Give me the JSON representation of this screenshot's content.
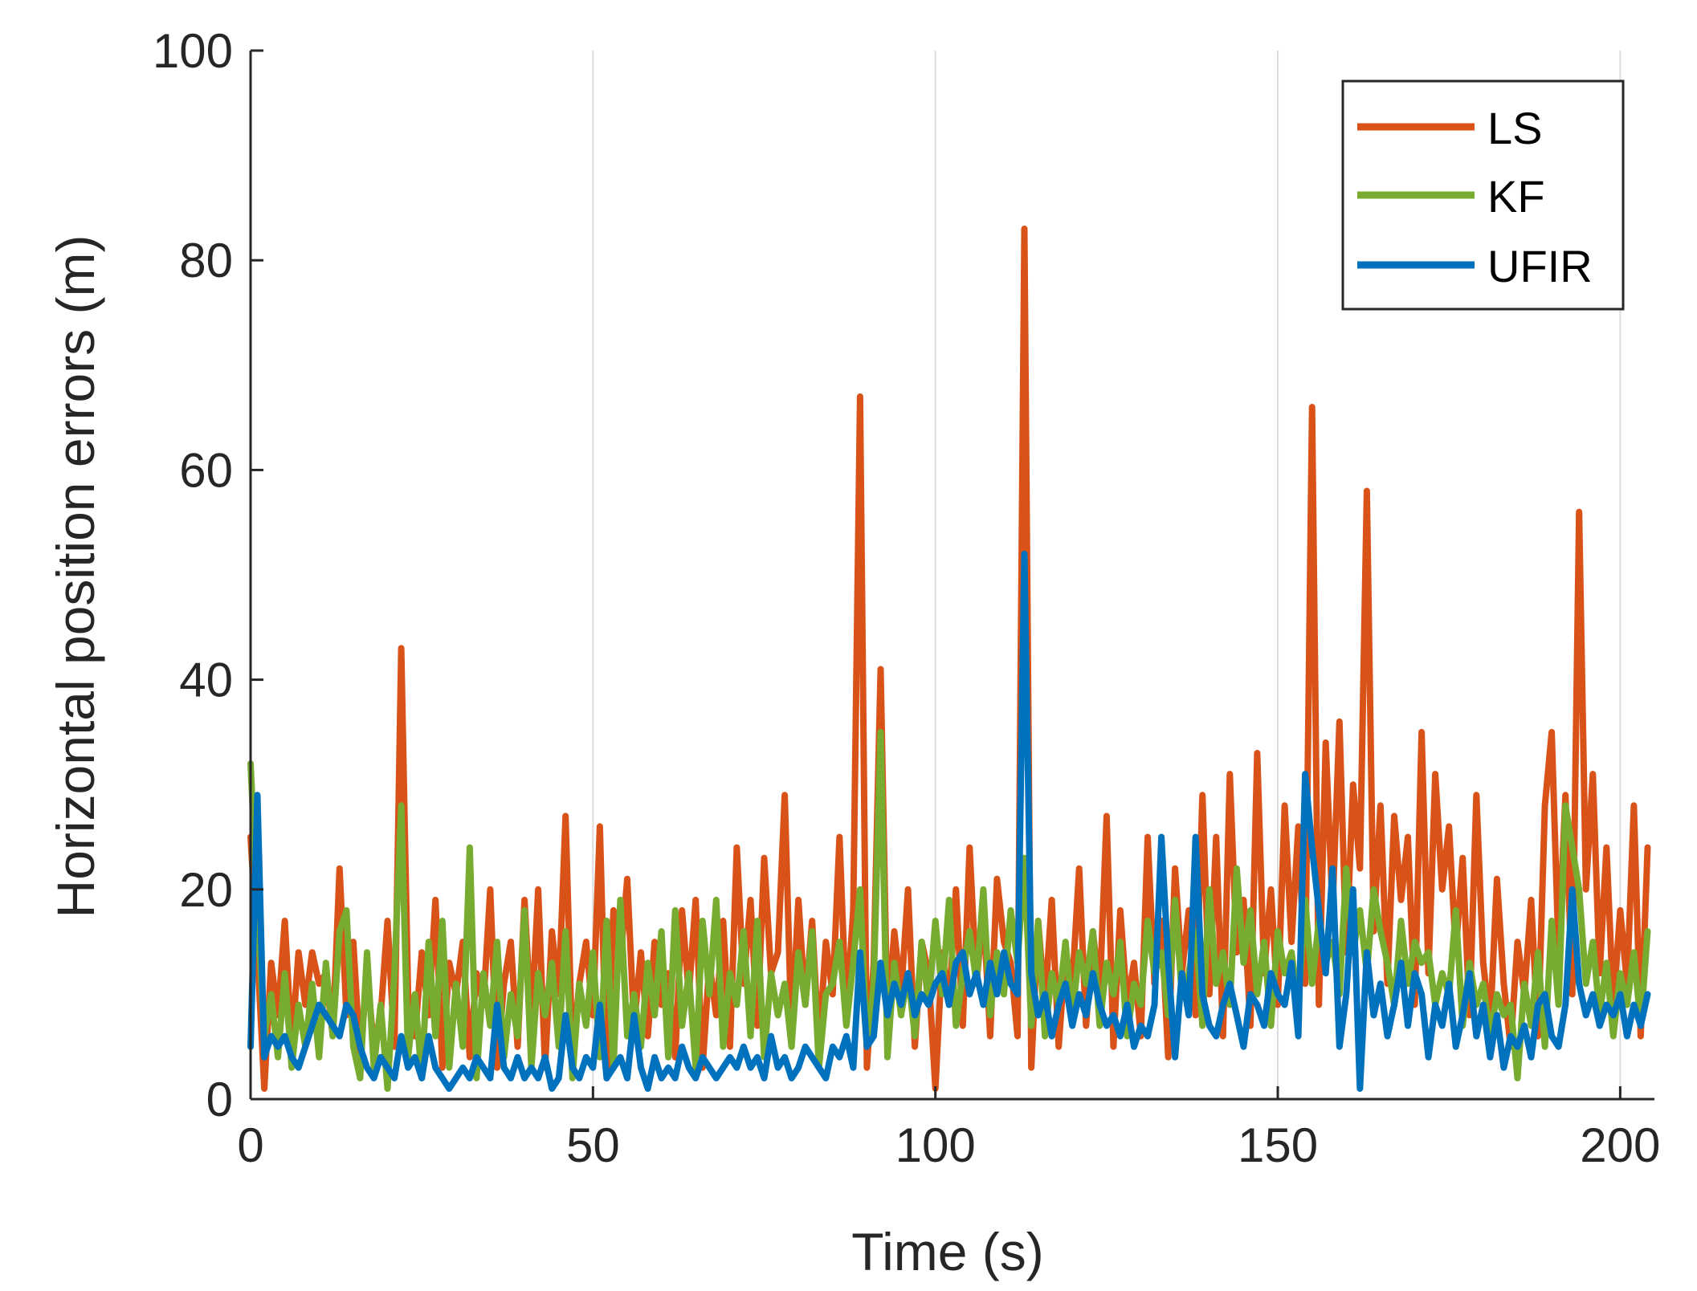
{
  "chart_data": {
    "type": "line",
    "title": "",
    "xlabel": "Time (s)",
    "ylabel": "Horizontal position errors (m)",
    "xlim": [
      0,
      205
    ],
    "ylim": [
      0,
      100
    ],
    "xticks": [
      0,
      50,
      100,
      150,
      200
    ],
    "yticks": [
      0,
      20,
      40,
      60,
      80,
      100
    ],
    "xtick_labels": [
      "0",
      "50",
      "100",
      "150",
      "200"
    ],
    "ytick_labels": [
      "0",
      "20",
      "40",
      "60",
      "80",
      "100"
    ],
    "grid": "vertical",
    "legend_position": "top-right",
    "series": [
      {
        "name": "LS",
        "color": "#D95319",
        "x": [
          0,
          1,
          2,
          3,
          4,
          5,
          6,
          7,
          8,
          9,
          10,
          11,
          12,
          13,
          14,
          15,
          16,
          17,
          18,
          19,
          20,
          21,
          22,
          23,
          24,
          25,
          26,
          27,
          28,
          29,
          30,
          31,
          32,
          33,
          34,
          35,
          36,
          37,
          38,
          39,
          40,
          41,
          42,
          43,
          44,
          45,
          46,
          47,
          48,
          49,
          50,
          51,
          52,
          53,
          54,
          55,
          56,
          57,
          58,
          59,
          60,
          61,
          62,
          63,
          64,
          65,
          66,
          67,
          68,
          69,
          70,
          71,
          72,
          73,
          74,
          75,
          76,
          77,
          78,
          79,
          80,
          81,
          82,
          83,
          84,
          85,
          86,
          87,
          88,
          89,
          90,
          91,
          92,
          93,
          94,
          95,
          96,
          97,
          98,
          99,
          100,
          101,
          102,
          103,
          104,
          105,
          106,
          107,
          108,
          109,
          110,
          111,
          112,
          113,
          114,
          115,
          116,
          117,
          118,
          119,
          120,
          121,
          122,
          123,
          124,
          125,
          126,
          127,
          128,
          129,
          130,
          131,
          132,
          133,
          134,
          135,
          136,
          137,
          138,
          139,
          140,
          141,
          142,
          143,
          144,
          145,
          146,
          147,
          148,
          149,
          150,
          151,
          152,
          153,
          154,
          155,
          156,
          157,
          158,
          159,
          160,
          161,
          162,
          163,
          164,
          165,
          166,
          167,
          168,
          169,
          170,
          171,
          172,
          173,
          174,
          175,
          176,
          177,
          178,
          179,
          180,
          181,
          182,
          183,
          184,
          185,
          186,
          187,
          188,
          189,
          190,
          191,
          192,
          193,
          194,
          195,
          196,
          197,
          198,
          199,
          200,
          201,
          202,
          203,
          204
        ],
        "values": [
          25,
          14,
          1,
          13,
          8,
          17,
          5,
          14,
          9,
          14,
          11,
          12,
          6,
          22,
          8,
          15,
          4,
          12,
          5,
          8,
          17,
          5,
          43,
          10,
          6,
          14,
          8,
          19,
          3,
          13,
          10,
          15,
          4,
          12,
          9,
          20,
          3,
          11,
          15,
          5,
          19,
          7,
          20,
          3,
          16,
          10,
          27,
          4,
          11,
          15,
          8,
          26,
          2,
          18,
          13,
          21,
          7,
          14,
          6,
          15,
          9,
          12,
          4,
          18,
          10,
          19,
          3,
          13,
          8,
          17,
          5,
          24,
          11,
          19,
          7,
          23,
          12,
          14,
          29,
          6,
          19,
          9,
          17,
          5,
          15,
          10,
          25,
          8,
          18,
          67,
          3,
          13,
          41,
          7,
          16,
          10,
          20,
          5,
          15,
          12,
          1,
          14,
          9,
          20,
          7,
          24,
          11,
          18,
          6,
          21,
          15,
          13,
          6,
          83,
          3,
          17,
          9,
          19,
          5,
          14,
          11,
          22,
          7,
          16,
          10,
          27,
          5,
          18,
          9,
          13,
          6,
          25,
          11,
          17,
          4,
          22,
          12,
          18,
          8,
          29,
          10,
          25,
          6,
          31,
          14,
          19,
          7,
          33,
          12,
          20,
          9,
          28,
          15,
          26,
          11,
          66,
          9,
          34,
          18,
          36,
          14,
          30,
          22,
          58,
          16,
          28,
          11,
          27,
          19,
          25,
          9,
          35,
          12,
          31,
          20,
          26,
          14,
          23,
          8,
          29,
          13,
          7,
          21,
          11,
          5,
          15,
          10,
          19,
          6,
          28,
          35,
          14,
          29,
          10,
          56,
          20,
          31,
          12,
          24,
          9,
          18,
          11,
          28,
          6,
          24
        ]
      },
      {
        "name": "KF",
        "color": "#77AC30",
        "x": [
          0,
          1,
          2,
          3,
          4,
          5,
          6,
          7,
          8,
          9,
          10,
          11,
          12,
          13,
          14,
          15,
          16,
          17,
          18,
          19,
          20,
          21,
          22,
          23,
          24,
          25,
          26,
          27,
          28,
          29,
          30,
          31,
          32,
          33,
          34,
          35,
          36,
          37,
          38,
          39,
          40,
          41,
          42,
          43,
          44,
          45,
          46,
          47,
          48,
          49,
          50,
          51,
          52,
          53,
          54,
          55,
          56,
          57,
          58,
          59,
          60,
          61,
          62,
          63,
          64,
          65,
          66,
          67,
          68,
          69,
          70,
          71,
          72,
          73,
          74,
          75,
          76,
          77,
          78,
          79,
          80,
          81,
          82,
          83,
          84,
          85,
          86,
          87,
          88,
          89,
          90,
          91,
          92,
          93,
          94,
          95,
          96,
          97,
          98,
          99,
          100,
          101,
          102,
          103,
          104,
          105,
          106,
          107,
          108,
          109,
          110,
          111,
          112,
          113,
          114,
          115,
          116,
          117,
          118,
          119,
          120,
          121,
          122,
          123,
          124,
          125,
          126,
          127,
          128,
          129,
          130,
          131,
          132,
          133,
          134,
          135,
          136,
          137,
          138,
          139,
          140,
          141,
          142,
          143,
          144,
          145,
          146,
          147,
          148,
          149,
          150,
          151,
          152,
          153,
          154,
          155,
          156,
          157,
          158,
          159,
          160,
          161,
          162,
          163,
          164,
          165,
          166,
          167,
          168,
          169,
          170,
          171,
          172,
          173,
          174,
          175,
          176,
          177,
          178,
          179,
          180,
          181,
          182,
          183,
          184,
          185,
          186,
          187,
          188,
          189,
          190,
          191,
          192,
          193,
          194,
          195,
          196,
          197,
          198,
          199,
          200,
          201,
          202,
          203,
          204
        ],
        "values": [
          32,
          18,
          6,
          10,
          4,
          12,
          3,
          9,
          5,
          11,
          4,
          13,
          6,
          16,
          18,
          5,
          2,
          14,
          3,
          9,
          1,
          12,
          28,
          4,
          10,
          2,
          15,
          6,
          17,
          3,
          11,
          5,
          24,
          2,
          12,
          7,
          15,
          4,
          10,
          6,
          18,
          3,
          12,
          8,
          13,
          5,
          16,
          2,
          11,
          7,
          14,
          4,
          17,
          3,
          19,
          6,
          10,
          5,
          13,
          8,
          16,
          4,
          18,
          7,
          12,
          3,
          17,
          10,
          19,
          5,
          12,
          9,
          16,
          6,
          17,
          4,
          12,
          8,
          11,
          5,
          14,
          9,
          16,
          3,
          10,
          11,
          15,
          7,
          13,
          20,
          5,
          11,
          35,
          4,
          13,
          8,
          12,
          6,
          15,
          9,
          17,
          10,
          19,
          7,
          12,
          16,
          11,
          20,
          8,
          14,
          10,
          18,
          13,
          23,
          7,
          17,
          6,
          12,
          9,
          15,
          8,
          14,
          11,
          16,
          7,
          13,
          10,
          15,
          6,
          11,
          9,
          17,
          12,
          14,
          8,
          19,
          10,
          12,
          16,
          7,
          20,
          11,
          14,
          9,
          22,
          13,
          18,
          10,
          15,
          7,
          16,
          12,
          14,
          9,
          19,
          11,
          17,
          13,
          15,
          10,
          22,
          14,
          18,
          12,
          20,
          16,
          13,
          9,
          17,
          11,
          15,
          13,
          14,
          9,
          12,
          10,
          18,
          7,
          13,
          9,
          11,
          6,
          10,
          8,
          9,
          2,
          11,
          7,
          14,
          5,
          17,
          9,
          28,
          24,
          20,
          11,
          15,
          8,
          13,
          6,
          12,
          9,
          14,
          7,
          16
        ]
      },
      {
        "name": "UFIR",
        "color": "#0072BD",
        "x": [
          0,
          1,
          2,
          3,
          4,
          5,
          6,
          7,
          8,
          9,
          10,
          11,
          12,
          13,
          14,
          15,
          16,
          17,
          18,
          19,
          20,
          21,
          22,
          23,
          24,
          25,
          26,
          27,
          28,
          29,
          30,
          31,
          32,
          33,
          34,
          35,
          36,
          37,
          38,
          39,
          40,
          41,
          42,
          43,
          44,
          45,
          46,
          47,
          48,
          49,
          50,
          51,
          52,
          53,
          54,
          55,
          56,
          57,
          58,
          59,
          60,
          61,
          62,
          63,
          64,
          65,
          66,
          67,
          68,
          69,
          70,
          71,
          72,
          73,
          74,
          75,
          76,
          77,
          78,
          79,
          80,
          81,
          82,
          83,
          84,
          85,
          86,
          87,
          88,
          89,
          90,
          91,
          92,
          93,
          94,
          95,
          96,
          97,
          98,
          99,
          100,
          101,
          102,
          103,
          104,
          105,
          106,
          107,
          108,
          109,
          110,
          111,
          112,
          113,
          114,
          115,
          116,
          117,
          118,
          119,
          120,
          121,
          122,
          123,
          124,
          125,
          126,
          127,
          128,
          129,
          130,
          131,
          132,
          133,
          134,
          135,
          136,
          137,
          138,
          139,
          140,
          141,
          142,
          143,
          144,
          145,
          146,
          147,
          148,
          149,
          150,
          151,
          152,
          153,
          154,
          155,
          156,
          157,
          158,
          159,
          160,
          161,
          162,
          163,
          164,
          165,
          166,
          167,
          168,
          169,
          170,
          171,
          172,
          173,
          174,
          175,
          176,
          177,
          178,
          179,
          180,
          181,
          182,
          183,
          184,
          185,
          186,
          187,
          188,
          189,
          190,
          191,
          192,
          193,
          194,
          195,
          196,
          197,
          198,
          199,
          200,
          201,
          202,
          203,
          204
        ],
        "values": [
          5,
          29,
          4,
          6,
          5,
          6,
          4,
          3,
          5,
          7,
          9,
          8,
          7,
          6,
          9,
          8,
          5,
          3,
          2,
          4,
          3,
          2,
          6,
          3,
          4,
          2,
          6,
          3,
          2,
          1,
          2,
          3,
          2,
          4,
          3,
          2,
          9,
          3,
          2,
          4,
          2,
          3,
          2,
          4,
          1,
          2,
          8,
          3,
          2,
          4,
          3,
          9,
          2,
          3,
          4,
          2,
          8,
          3,
          1,
          4,
          2,
          3,
          2,
          5,
          3,
          2,
          4,
          3,
          2,
          3,
          4,
          3,
          5,
          3,
          4,
          2,
          6,
          3,
          4,
          2,
          3,
          5,
          4,
          3,
          2,
          5,
          4,
          6,
          3,
          14,
          5,
          6,
          13,
          8,
          11,
          9,
          12,
          8,
          10,
          9,
          11,
          12,
          9,
          13,
          14,
          10,
          12,
          9,
          13,
          10,
          14,
          11,
          10,
          52,
          12,
          8,
          10,
          6,
          9,
          11,
          7,
          10,
          8,
          12,
          9,
          7,
          8,
          6,
          9,
          5,
          7,
          6,
          9,
          25,
          13,
          4,
          12,
          8,
          25,
          10,
          7,
          6,
          9,
          11,
          8,
          5,
          10,
          9,
          7,
          12,
          10,
          9,
          13,
          6,
          31,
          24,
          18,
          12,
          22,
          5,
          10,
          20,
          1,
          14,
          8,
          11,
          6,
          9,
          13,
          7,
          12,
          10,
          4,
          9,
          7,
          11,
          5,
          8,
          12,
          6,
          9,
          4,
          8,
          3,
          6,
          5,
          7,
          4,
          9,
          10,
          6,
          5,
          9,
          20,
          11,
          8,
          10,
          7,
          9,
          8,
          10,
          6,
          9,
          7,
          10
        ]
      }
    ]
  }
}
